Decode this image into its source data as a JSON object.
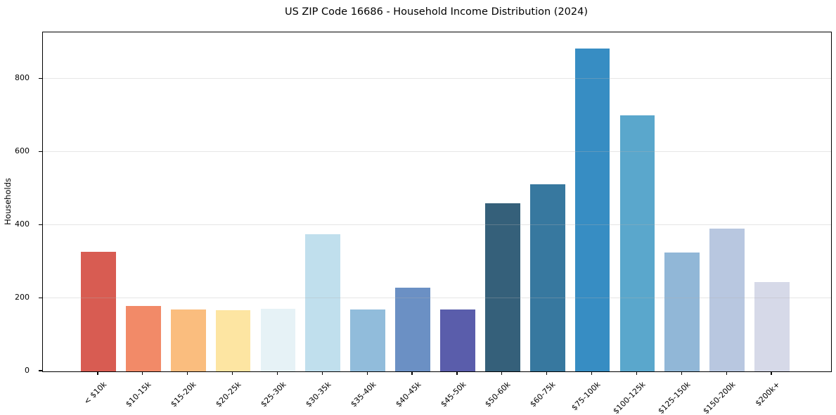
{
  "chart_data": {
    "type": "bar",
    "title": "US ZIP Code 16686 - Household Income Distribution (2024)",
    "xlabel": "",
    "ylabel": "Households",
    "categories": [
      "< $10k",
      "$10-15k",
      "$15-20k",
      "$20-25k",
      "$25-30k",
      "$30-35k",
      "$35-40k",
      "$40-45k",
      "$45-50k",
      "$50-60k",
      "$60-75k",
      "$75-100k",
      "$100-125k",
      "$125-150k",
      "$150-200k",
      "$200k+"
    ],
    "values": [
      327,
      179,
      169,
      168,
      171,
      375,
      169,
      229,
      169,
      461,
      513,
      883,
      700,
      325,
      390,
      244
    ],
    "bar_colors": [
      "#d85c52",
      "#f28a68",
      "#fabd7e",
      "#fde5a2",
      "#e6f2f6",
      "#c0dfed",
      "#91bcdb",
      "#6b90c4",
      "#5a5dab",
      "#35607a",
      "#37789f",
      "#378dc3",
      "#5aa7cc",
      "#91b7d7",
      "#b8c7e0",
      "#d6d9e8"
    ],
    "yticks": [
      0,
      200,
      400,
      600,
      800
    ],
    "ylim": [
      0,
      928
    ],
    "grid": "horizontal",
    "gridline_color": "#b0b0b0",
    "background_color": "#ffffff",
    "spine_color": "#000000",
    "legend": "none"
  }
}
